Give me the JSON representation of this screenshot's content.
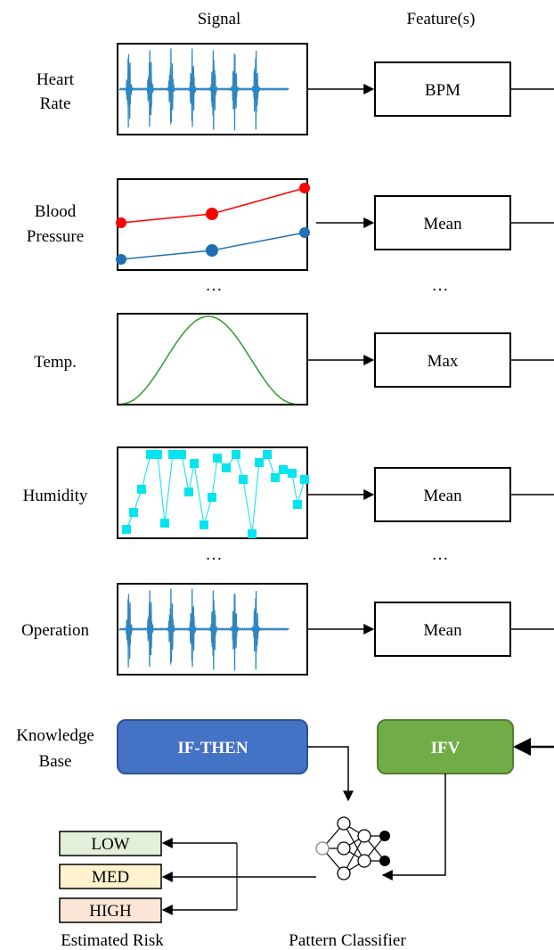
{
  "headers": {
    "signal": "Signal",
    "features": "Feature(s)"
  },
  "rows": [
    {
      "label_lines": [
        "Heart",
        "Rate"
      ],
      "feature": "BPM",
      "signal_icon": "waveform-icon"
    },
    {
      "label_lines": [
        "Blood",
        "Pressure"
      ],
      "feature": "Mean",
      "signal_icon": "two-line-trend-icon"
    },
    {
      "label_lines": [
        "Temp."
      ],
      "feature": "Max",
      "signal_icon": "sine-wave-icon"
    },
    {
      "label_lines": [
        "Humidity"
      ],
      "feature": "Mean",
      "signal_icon": "scatter-line-icon"
    },
    {
      "label_lines": [
        "Operation"
      ],
      "feature": "Mean",
      "signal_icon": "waveform-icon"
    }
  ],
  "ellipsis": "…",
  "knowledge_base": {
    "label_lines": [
      "Knowledge",
      "Base"
    ],
    "rules_label": "IF-THEN",
    "ifv_label": "IFV"
  },
  "classifier": {
    "label": "Pattern Classifier",
    "icon": "neural-network-icon"
  },
  "risk": {
    "title": "Estimated Risk",
    "levels": [
      {
        "label": "LOW",
        "fill": "#e2efd9",
        "stroke": "#000000"
      },
      {
        "label": "MED",
        "fill": "#fff2cc",
        "stroke": "#000000"
      },
      {
        "label": "HIGH",
        "fill": "#fbe5d6",
        "stroke": "#000000"
      }
    ]
  },
  "colors": {
    "waveform": "#2e86c1",
    "bp_red": "#ff0000",
    "bp_blue": "#1f6fb5",
    "sine": "#2e9b2e",
    "humidity": "#00e5ee",
    "rules_fill": "#4472c4",
    "rules_stroke": "#2f528f",
    "ifv_fill": "#70ad47",
    "ifv_stroke": "#507e32"
  }
}
